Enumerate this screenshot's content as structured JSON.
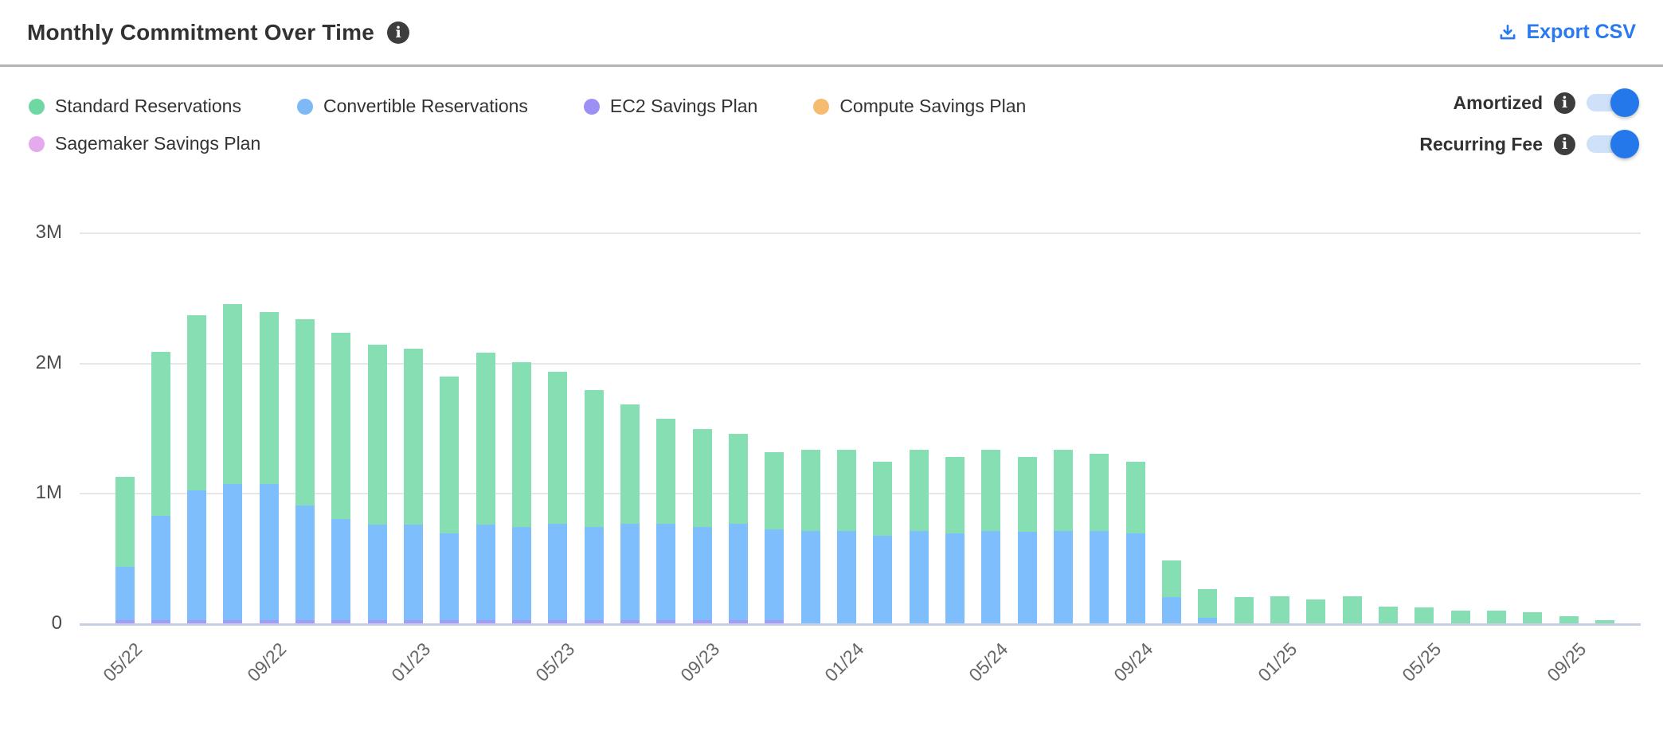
{
  "header": {
    "title": "Monthly Commitment Over Time",
    "export_label": "Export CSV",
    "export_color": "#2979f2"
  },
  "legend": {
    "rows": [
      [
        {
          "name": "Standard Reservations",
          "color": "#6fd7a2"
        },
        {
          "name": "Convertible Reservations",
          "color": "#7cb9f5"
        },
        {
          "name": "EC2 Savings Plan",
          "color": "#9c90f5"
        },
        {
          "name": "Compute Savings Plan",
          "color": "#f5bb6e"
        }
      ],
      [
        {
          "name": "Sagemaker Savings Plan",
          "color": "#e5aaee"
        }
      ]
    ]
  },
  "toggles": [
    {
      "label": "Amortized",
      "state": "on"
    },
    {
      "label": "Recurring Fee",
      "state": "on"
    }
  ],
  "chart_data": {
    "type": "bar",
    "stacked": true,
    "unit": "M (USD, millions)",
    "ylim": [
      0,
      3
    ],
    "ytick_labels": [
      "0",
      "1M",
      "2M",
      "3M"
    ],
    "grid": "horizontal",
    "xtick_every": 4,
    "categories": [
      "05/22",
      "06/22",
      "07/22",
      "08/22",
      "09/22",
      "10/22",
      "11/22",
      "12/22",
      "01/23",
      "02/23",
      "03/23",
      "04/23",
      "05/23",
      "06/23",
      "07/23",
      "08/23",
      "09/23",
      "10/23",
      "11/23",
      "12/23",
      "01/24",
      "02/24",
      "03/24",
      "04/24",
      "05/24",
      "06/24",
      "07/24",
      "08/24",
      "09/24",
      "10/24",
      "11/24",
      "12/24",
      "01/25",
      "02/25",
      "03/25",
      "04/25",
      "05/25",
      "06/25",
      "07/25",
      "08/25",
      "09/25",
      "10/25"
    ],
    "visible_xtick_labels": [
      "05/22",
      "09/22",
      "01/23",
      "05/23",
      "09/23",
      "01/24",
      "05/24",
      "09/24",
      "01/25",
      "05/25",
      "09/25"
    ],
    "series": [
      {
        "name": "EC2 Savings Plan",
        "color": "#a49cf8",
        "values": [
          0.022,
          0.022,
          0.022,
          0.022,
          0.022,
          0.022,
          0.022,
          0.022,
          0.022,
          0.022,
          0.022,
          0.022,
          0.022,
          0.022,
          0.022,
          0.022,
          0.022,
          0.022,
          0.022,
          0,
          0,
          0,
          0,
          0,
          0,
          0,
          0,
          0,
          0,
          0,
          0,
          0,
          0,
          0,
          0,
          0,
          0,
          0,
          0,
          0,
          0,
          0
        ]
      },
      {
        "name": "Convertible Reservations",
        "color": "#7fbefc",
        "values": [
          0.41,
          0.8,
          1.0,
          1.05,
          1.05,
          0.88,
          0.78,
          0.735,
          0.735,
          0.67,
          0.735,
          0.72,
          0.74,
          0.72,
          0.74,
          0.74,
          0.72,
          0.74,
          0.7,
          0.71,
          0.71,
          0.67,
          0.71,
          0.69,
          0.71,
          0.7,
          0.71,
          0.71,
          0.69,
          0.2,
          0.04,
          0,
          0,
          0,
          0,
          0,
          0,
          0,
          0,
          0,
          0,
          0
        ]
      },
      {
        "name": "Standard Reservations",
        "color": "#85dfb2",
        "values": [
          0.69,
          1.26,
          1.34,
          1.38,
          1.32,
          1.43,
          1.43,
          1.38,
          1.35,
          1.2,
          1.32,
          1.26,
          1.17,
          1.05,
          0.92,
          0.81,
          0.75,
          0.69,
          0.59,
          0.62,
          0.62,
          0.57,
          0.62,
          0.59,
          0.62,
          0.58,
          0.62,
          0.59,
          0.55,
          0.28,
          0.22,
          0.2,
          0.21,
          0.185,
          0.21,
          0.13,
          0.12,
          0.1,
          0.1,
          0.085,
          0.055,
          0.025
        ]
      },
      {
        "name": "Compute Savings Plan",
        "color": "#f5bb6e",
        "values": [
          0,
          0,
          0,
          0,
          0,
          0,
          0,
          0,
          0,
          0,
          0,
          0,
          0,
          0,
          0,
          0,
          0,
          0,
          0,
          0,
          0,
          0,
          0,
          0,
          0,
          0,
          0,
          0,
          0,
          0,
          0,
          0,
          0,
          0,
          0,
          0,
          0,
          0,
          0,
          0,
          0,
          0
        ]
      },
      {
        "name": "Sagemaker Savings Plan",
        "color": "#e5aaee",
        "values": [
          0,
          0,
          0,
          0,
          0,
          0,
          0,
          0,
          0,
          0,
          0,
          0,
          0,
          0,
          0,
          0,
          0,
          0,
          0,
          0,
          0,
          0,
          0,
          0,
          0,
          0,
          0,
          0,
          0,
          0,
          0,
          0,
          0,
          0,
          0,
          0,
          0,
          0,
          0,
          0,
          0,
          0
        ]
      }
    ],
    "title": "Monthly Commitment Over Time",
    "xlabel": "",
    "ylabel": ""
  }
}
